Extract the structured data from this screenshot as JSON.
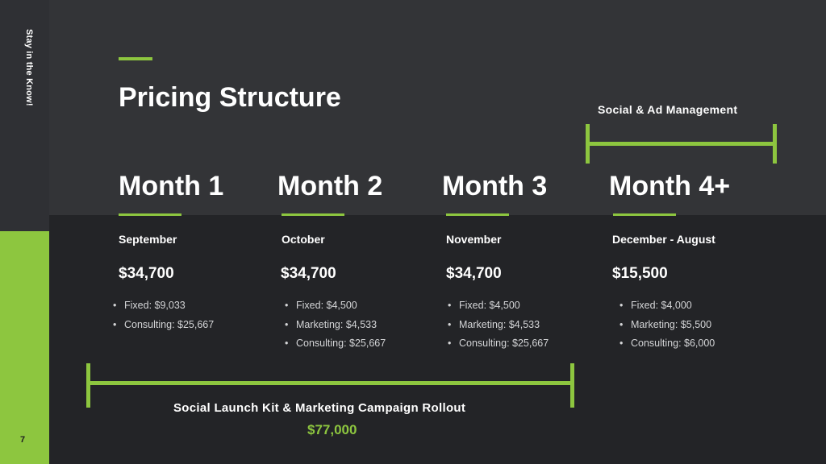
{
  "sidebar": {
    "tagline": "Stay in the Know!",
    "page_number": "7"
  },
  "title": "Pricing Structure",
  "colors": {
    "accent": "#8dc63f",
    "background": "#232427",
    "top_band": "#333437"
  },
  "social_management": {
    "label": "Social & Ad Management"
  },
  "months": [
    {
      "label": "Month 1",
      "period": "September",
      "price": "$34,700",
      "items": [
        "Fixed: $9,033",
        "Consulting: $25,667"
      ]
    },
    {
      "label": "Month 2",
      "period": "October",
      "price": "$34,700",
      "items": [
        "Fixed: $4,500",
        "Marketing: $4,533",
        "Consulting: $25,667"
      ]
    },
    {
      "label": "Month 3",
      "period": "November",
      "price": "$34,700",
      "items": [
        "Fixed: $4,500",
        "Marketing: $4,533",
        "Consulting: $25,667"
      ]
    },
    {
      "label": "Month 4+",
      "period": "December - August",
      "price": "$15,500",
      "items": [
        "Fixed: $4,000",
        "Marketing: $5,500",
        "Consulting: $6,000"
      ]
    }
  ],
  "launch_kit": {
    "label": "Social Launch Kit & Marketing Campaign Rollout",
    "total": "$77,000"
  }
}
